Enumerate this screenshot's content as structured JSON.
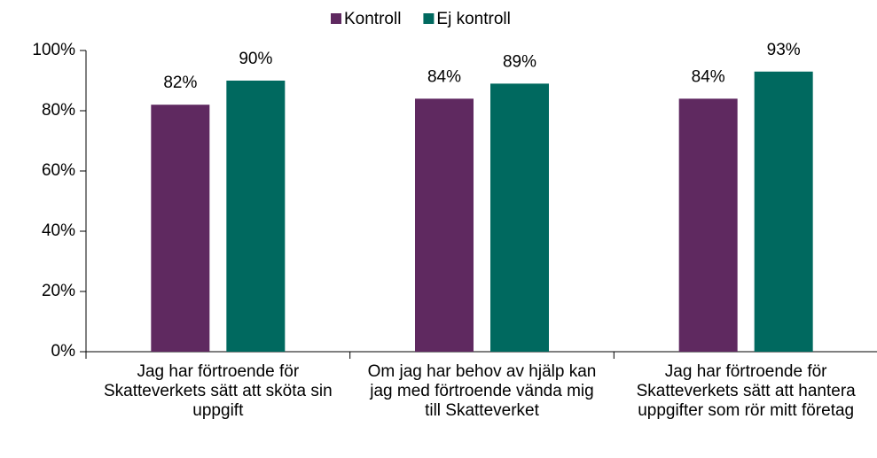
{
  "chart_data": {
    "type": "bar",
    "categories": [
      "Jag har förtroende för Skatteverkets sätt att sköta sin uppgift",
      "Om jag har behov av hjälp kan jag med förtroende vända mig till Skatteverket",
      "Jag har förtroende för Skatteverkets sätt att hantera uppgifter som rör mitt företag"
    ],
    "series": [
      {
        "name": "Kontroll",
        "color": "#5f2960",
        "values": [
          82,
          84,
          84
        ],
        "value_labels": [
          "82%",
          "84%",
          "84%"
        ]
      },
      {
        "name": "Ej kontroll",
        "color": "#00695f",
        "values": [
          90,
          89,
          93
        ],
        "value_labels": [
          "90%",
          "89%",
          "93%"
        ]
      }
    ],
    "ylim": [
      0,
      100
    ],
    "yticks": [
      {
        "value": 0,
        "label": "0%"
      },
      {
        "value": 20,
        "label": "20%"
      },
      {
        "value": 40,
        "label": "40%"
      },
      {
        "value": 60,
        "label": "60%"
      },
      {
        "value": 80,
        "label": "80%"
      },
      {
        "value": 100,
        "label": "100%"
      }
    ],
    "legend": "top"
  }
}
